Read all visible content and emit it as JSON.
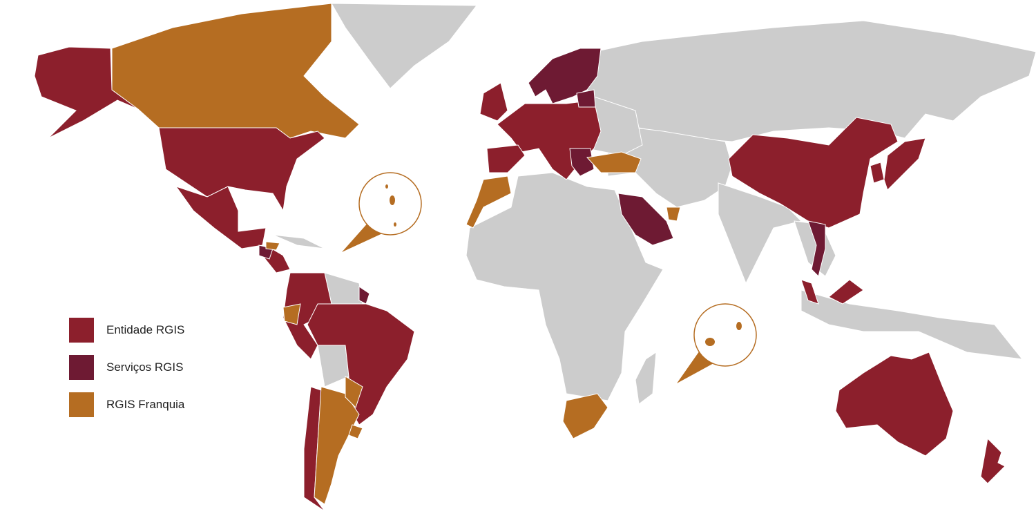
{
  "colors": {
    "entidade": "#8c1f2c",
    "servicos": "#6e1a33",
    "franquia": "#b56d22",
    "other": "#cccccc",
    "border": "#ffffff"
  },
  "legend": [
    {
      "label": "Entidade RGIS",
      "category": "entidade"
    },
    {
      "label": "Serviços RGIS",
      "category": "servicos"
    },
    {
      "label": "RGIS Franquia",
      "category": "franquia"
    }
  ],
  "regions": [
    {
      "name": "greenland",
      "category": "other"
    },
    {
      "name": "russia-asia",
      "category": "other"
    },
    {
      "name": "central-asia-middle-east",
      "category": "other"
    },
    {
      "name": "india-south-asia",
      "category": "other"
    },
    {
      "name": "southeast-asia",
      "category": "other"
    },
    {
      "name": "indonesia",
      "category": "other"
    },
    {
      "name": "africa",
      "category": "other"
    },
    {
      "name": "madagascar",
      "category": "other"
    },
    {
      "name": "eastern-europe",
      "category": "other"
    },
    {
      "name": "guianas",
      "category": "other"
    },
    {
      "name": "bolivia",
      "category": "other"
    },
    {
      "name": "caribbean",
      "category": "other"
    },
    {
      "name": "alaska",
      "category": "entidade"
    },
    {
      "name": "canada",
      "category": "franquia"
    },
    {
      "name": "usa",
      "category": "entidade"
    },
    {
      "name": "mexico",
      "category": "entidade"
    },
    {
      "name": "central-america",
      "category": "entidade"
    },
    {
      "name": "guatemala",
      "category": "servicos"
    },
    {
      "name": "honduras",
      "category": "franquia"
    },
    {
      "name": "colombia-venezuela-peru",
      "category": "entidade"
    },
    {
      "name": "ecuador",
      "category": "franquia"
    },
    {
      "name": "suriname",
      "category": "servicos"
    },
    {
      "name": "brazil",
      "category": "entidade"
    },
    {
      "name": "chile",
      "category": "entidade"
    },
    {
      "name": "argentina",
      "category": "franquia"
    },
    {
      "name": "paraguay",
      "category": "franquia"
    },
    {
      "name": "uruguay",
      "category": "franquia"
    },
    {
      "name": "western-europe",
      "category": "entidade"
    },
    {
      "name": "uk-ireland",
      "category": "entidade"
    },
    {
      "name": "iberia",
      "category": "entidade"
    },
    {
      "name": "scandinavia",
      "category": "servicos"
    },
    {
      "name": "baltics",
      "category": "servicos"
    },
    {
      "name": "balkans",
      "category": "servicos"
    },
    {
      "name": "turkey",
      "category": "franquia"
    },
    {
      "name": "morocco",
      "category": "franquia"
    },
    {
      "name": "saudi-arabia",
      "category": "servicos"
    },
    {
      "name": "uae",
      "category": "franquia"
    },
    {
      "name": "south-africa",
      "category": "franquia"
    },
    {
      "name": "china",
      "category": "entidade"
    },
    {
      "name": "korea",
      "category": "entidade"
    },
    {
      "name": "japan",
      "category": "entidade"
    },
    {
      "name": "vietnam",
      "category": "servicos"
    },
    {
      "name": "malaysia",
      "category": "entidade"
    },
    {
      "name": "australia",
      "category": "entidade"
    },
    {
      "name": "new-zealand",
      "category": "entidade"
    }
  ]
}
